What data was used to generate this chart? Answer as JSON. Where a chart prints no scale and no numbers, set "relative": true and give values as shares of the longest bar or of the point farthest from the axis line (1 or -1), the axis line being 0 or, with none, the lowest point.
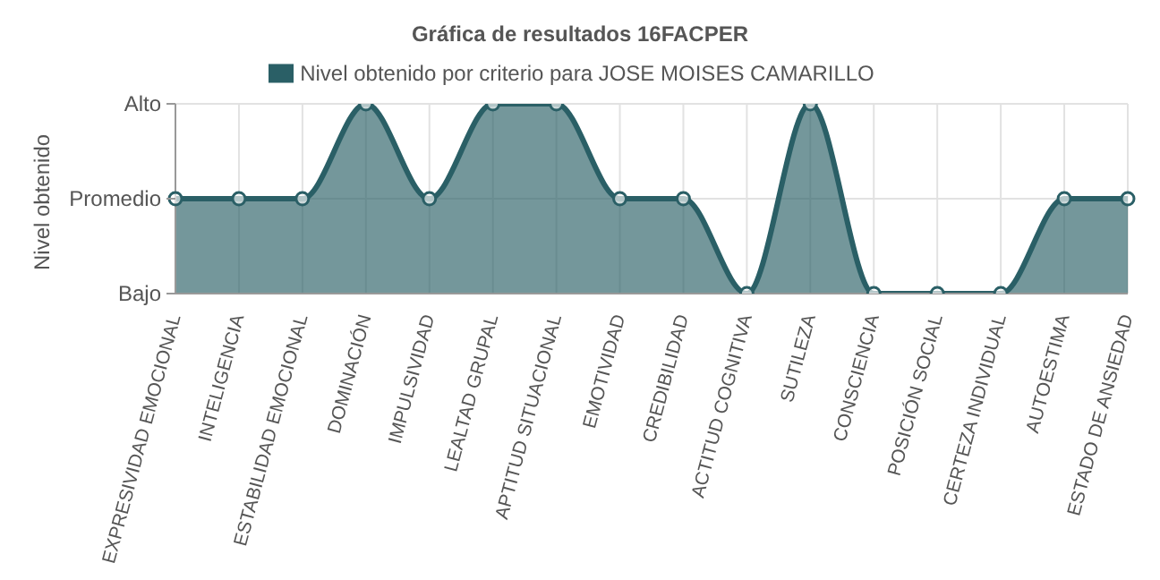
{
  "chart_data": {
    "type": "area",
    "title": "Gráfica de resultados 16FACPER",
    "ylabel": "Nivel obtenido",
    "relative": true,
    "categories": [
      "EXPRESIVIDAD EMOCIONAL",
      "INTELIGENCIA",
      "ESTABILIDAD EMOCIONAL",
      "DOMINACIÓN",
      "IMPULSIVIDAD",
      "LEALTAD GRUPAL",
      "APTITUD SITUACIONAL",
      "EMOTIVIDAD",
      "CREDIBILIDAD",
      "ACTITUD COGNITIVA",
      "SUTILEZA",
      "CONSCIENCIA",
      "POSICIÓN SOCIAL",
      "CERTEZA INDIVIDUAL",
      "AUTOESTIMA",
      "ESTADO DE ANSIEDAD"
    ],
    "series": [
      {
        "name": "Nivel obtenido por criterio para JOSE MOISES CAMARILLO",
        "color": "#2a5f66",
        "values": [
          0.5,
          0.5,
          0.5,
          1,
          0.5,
          1,
          1,
          0.5,
          0.5,
          0,
          1,
          0,
          0,
          0,
          0.5,
          0.5
        ]
      }
    ],
    "annotations": [
      "Bajo",
      "Promedio",
      "Alto"
    ],
    "grid": true,
    "legend": "top",
    "marker": "circle"
  }
}
